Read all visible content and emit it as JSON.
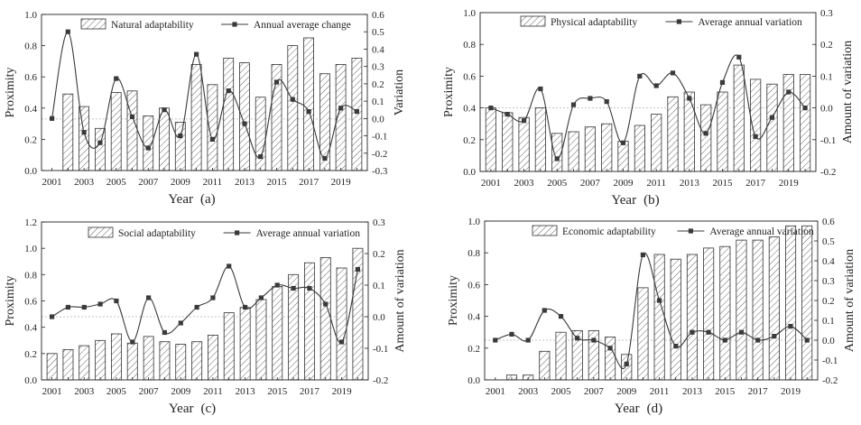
{
  "colors": {
    "bar_fill": "#ffffff",
    "bar_stroke": "#333333",
    "hatch": "#555555",
    "line": "#3a3a3a",
    "marker": "#3a3a3a",
    "ref_line": "#b0b0b0",
    "axis": "#222222"
  },
  "chart_data": [
    {
      "type": "bar",
      "panel_label": "(a)",
      "xlabel": "Year",
      "ylabel_left": "Proximity",
      "ylabel_right": "Variation",
      "ylim_left": [
        0,
        1.0
      ],
      "yticks_left": [
        "0.0",
        "0.2",
        "0.4",
        "0.6",
        "0.8",
        "1.0"
      ],
      "ylim_right": [
        -0.3,
        0.6
      ],
      "yticks_right": [
        "-0.3",
        "-0.2",
        "-0.1",
        "0.0",
        "0.1",
        "0.2",
        "0.3",
        "0.4",
        "0.5",
        "0.6"
      ],
      "xticks": [
        "2001",
        "2003",
        "2005",
        "2007",
        "2009",
        "2011",
        "2013",
        "2015",
        "2017",
        "2019"
      ],
      "categories": [
        "2001",
        "2002",
        "2003",
        "2004",
        "2005",
        "2006",
        "2007",
        "2008",
        "2009",
        "2010",
        "2011",
        "2012",
        "2013",
        "2014",
        "2015",
        "2016",
        "2017",
        "2018",
        "2019",
        "2020"
      ],
      "series": [
        {
          "name": "Natural adaptability",
          "kind": "bar",
          "axis": "left",
          "values": [
            null,
            0.49,
            0.41,
            0.27,
            0.5,
            0.51,
            0.35,
            0.4,
            0.31,
            0.68,
            0.55,
            0.72,
            0.69,
            0.47,
            0.68,
            0.8,
            0.85,
            0.62,
            0.68,
            0.72
          ]
        },
        {
          "name": "Annual average change",
          "kind": "line",
          "axis": "right",
          "values": [
            0.0,
            0.5,
            -0.08,
            -0.14,
            0.23,
            0.01,
            -0.17,
            0.05,
            -0.1,
            0.37,
            -0.12,
            0.16,
            -0.03,
            -0.22,
            0.21,
            0.11,
            0.04,
            -0.23,
            0.06,
            0.04
          ]
        }
      ],
      "ref_value": 0.33
    },
    {
      "type": "bar",
      "panel_label": "(b)",
      "xlabel": "Year",
      "ylabel_left": "Proximity",
      "ylabel_right": "Amount of variation",
      "ylim_left": [
        0,
        1.0
      ],
      "yticks_left": [
        "0.0",
        "0.2",
        "0.4",
        "0.6",
        "0.8",
        "1.0"
      ],
      "ylim_right": [
        -0.2,
        0.3
      ],
      "yticks_right": [
        "-0.2",
        "-0.1",
        "0.0",
        "0.1",
        "0.2",
        "0.3"
      ],
      "xticks": [
        "2001",
        "2003",
        "2005",
        "2007",
        "2009",
        "2011",
        "2013",
        "2015",
        "2017",
        "2019"
      ],
      "categories": [
        "2001",
        "2002",
        "2003",
        "2004",
        "2005",
        "2006",
        "2007",
        "2008",
        "2009",
        "2010",
        "2011",
        "2012",
        "2013",
        "2014",
        "2015",
        "2016",
        "2017",
        "2018",
        "2019",
        "2020"
      ],
      "series": [
        {
          "name": "Physical adaptability",
          "kind": "bar",
          "axis": "left",
          "values": [
            0.4,
            0.37,
            0.34,
            0.4,
            0.24,
            0.25,
            0.28,
            0.3,
            0.19,
            0.29,
            0.36,
            0.47,
            0.5,
            0.42,
            0.5,
            0.67,
            0.58,
            0.55,
            0.61,
            0.61
          ]
        },
        {
          "name": "Average annual variation",
          "kind": "line",
          "axis": "right",
          "values": [
            0.0,
            -0.02,
            -0.04,
            0.06,
            -0.16,
            0.01,
            0.03,
            0.02,
            -0.11,
            0.1,
            0.07,
            0.11,
            0.03,
            -0.08,
            0.08,
            0.16,
            -0.09,
            -0.03,
            0.05,
            0.0
          ]
        }
      ],
      "ref_value": 0.4
    },
    {
      "type": "bar",
      "panel_label": "(c)",
      "xlabel": "Year",
      "ylabel_left": "Proximity",
      "ylabel_right": "Amount of variation",
      "ylim_left": [
        0,
        1.2
      ],
      "yticks_left": [
        "0.0",
        "0.2",
        "0.4",
        "0.6",
        "0.8",
        "1.0",
        "1.2"
      ],
      "ylim_right": [
        -0.2,
        0.3
      ],
      "yticks_right": [
        "-0.2",
        "-0.1",
        "0.0",
        "0.1",
        "0.2",
        "0.3"
      ],
      "xticks": [
        "2001",
        "2003",
        "2005",
        "2007",
        "2009",
        "2011",
        "2013",
        "2015",
        "2017",
        "2019"
      ],
      "categories": [
        "2001",
        "2002",
        "2003",
        "2004",
        "2005",
        "2006",
        "2007",
        "2008",
        "2009",
        "2010",
        "2011",
        "2012",
        "2013",
        "2014",
        "2015",
        "2016",
        "2017",
        "2018",
        "2019",
        "2020"
      ],
      "series": [
        {
          "name": "Social adaptability",
          "kind": "bar",
          "axis": "left",
          "values": [
            0.2,
            0.23,
            0.26,
            0.3,
            0.35,
            0.28,
            0.33,
            0.29,
            0.27,
            0.29,
            0.34,
            0.51,
            0.55,
            0.61,
            0.71,
            0.8,
            0.89,
            0.93,
            0.85,
            1.0
          ]
        },
        {
          "name": "Average annual variation",
          "kind": "line",
          "axis": "right",
          "values": [
            0.0,
            0.03,
            0.03,
            0.04,
            0.05,
            -0.08,
            0.06,
            -0.05,
            -0.02,
            0.03,
            0.06,
            0.16,
            0.03,
            0.06,
            0.1,
            0.09,
            0.09,
            0.04,
            -0.08,
            0.15
          ]
        }
      ],
      "ref_value": 0.48
    },
    {
      "type": "bar",
      "panel_label": "(d)",
      "xlabel": "Year",
      "ylabel_left": "Proximity",
      "ylabel_right": "Amount of variation",
      "ylim_left": [
        0,
        1.0
      ],
      "yticks_left": [
        "0.0",
        "0.2",
        "0.4",
        "0.6",
        "0.8",
        "1.0"
      ],
      "ylim_right": [
        -0.2,
        0.6
      ],
      "yticks_right": [
        "-0.2",
        "-0.1",
        "0.0",
        "0.1",
        "0.2",
        "0.3",
        "0.4",
        "0.5",
        "0.6"
      ],
      "xticks": [
        "2001",
        "2003",
        "2005",
        "2007",
        "2009",
        "2011",
        "2013",
        "2015",
        "2017",
        "2019"
      ],
      "categories": [
        "2001",
        "2002",
        "2003",
        "2004",
        "2005",
        "2006",
        "2007",
        "2008",
        "2009",
        "2010",
        "2011",
        "2012",
        "2013",
        "2014",
        "2015",
        "2016",
        "2017",
        "2018",
        "2019",
        "2020"
      ],
      "series": [
        {
          "name": "Economic adaptability",
          "kind": "bar",
          "axis": "left",
          "values": [
            null,
            0.03,
            0.03,
            0.18,
            0.3,
            0.31,
            0.31,
            0.27,
            0.16,
            0.58,
            0.79,
            0.76,
            0.79,
            0.83,
            0.84,
            0.88,
            0.88,
            0.9,
            0.97,
            0.97
          ]
        },
        {
          "name": "Average annual variation",
          "kind": "line",
          "axis": "right",
          "values": [
            0.0,
            0.03,
            0.0,
            0.15,
            0.12,
            0.01,
            0.0,
            -0.04,
            -0.12,
            0.43,
            0.2,
            -0.03,
            0.04,
            0.04,
            0.0,
            0.04,
            0.0,
            0.02,
            0.07,
            0.0
          ]
        }
      ],
      "ref_value": 0.25
    }
  ]
}
